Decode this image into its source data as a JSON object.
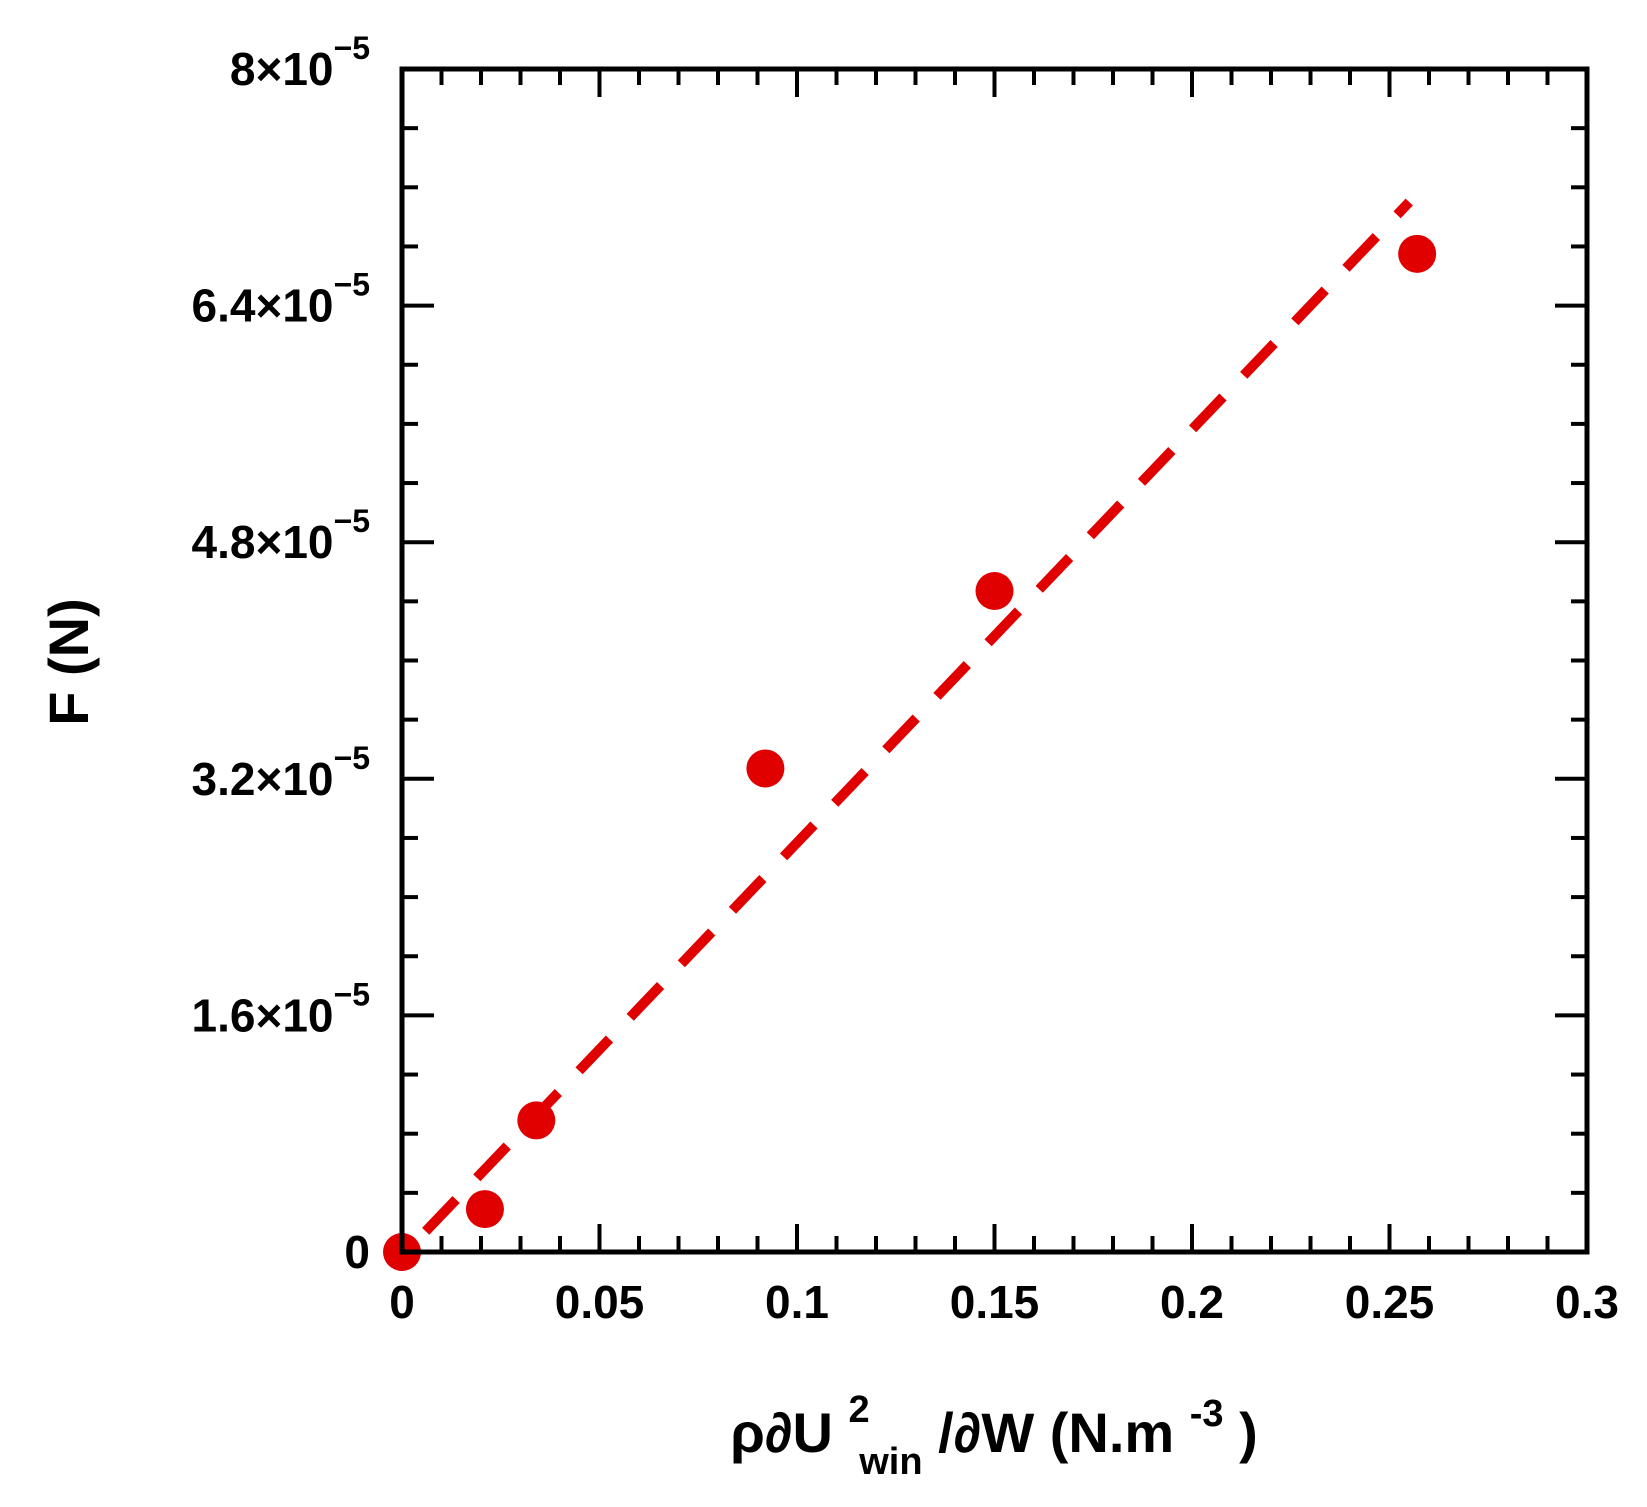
{
  "chart_data": {
    "type": "scatter",
    "title": "",
    "xlabel": {
      "prefix": "ρ∂U",
      "sup": "2",
      "sub": "win",
      "mid": " /∂W (N.m",
      "unit_sup": "-3",
      "suffix": ")"
    },
    "ylabel": "F (N)",
    "xlim": [
      0,
      0.3
    ],
    "ylim": [
      0,
      8e-05
    ],
    "x_ticks": [
      {
        "value": 0,
        "label": "0"
      },
      {
        "value": 0.05,
        "label": "0.05"
      },
      {
        "value": 0.1,
        "label": "0.1"
      },
      {
        "value": 0.15,
        "label": "0.15"
      },
      {
        "value": 0.2,
        "label": "0.2"
      },
      {
        "value": 0.25,
        "label": "0.25"
      },
      {
        "value": 0.3,
        "label": "0.3"
      }
    ],
    "y_ticks": [
      {
        "value": 0,
        "mantissa": "0",
        "exp": ""
      },
      {
        "value": 1.6e-05,
        "mantissa": "1.6×10",
        "exp": "−5"
      },
      {
        "value": 3.2e-05,
        "mantissa": "3.2×10",
        "exp": "−5"
      },
      {
        "value": 4.8e-05,
        "mantissa": "4.8×10",
        "exp": "−5"
      },
      {
        "value": 6.4e-05,
        "mantissa": "6.4×10",
        "exp": "−5"
      },
      {
        "value": 8e-05,
        "mantissa": "8×10",
        "exp": "−5"
      }
    ],
    "series": [
      {
        "color": "#e00000",
        "marker": "circle",
        "x": [
          0,
          0.021,
          0.034,
          0.092,
          0.15,
          0.257
        ],
        "y": [
          0,
          2.9e-06,
          8.9e-06,
          3.27e-05,
          4.47e-05,
          6.75e-05
        ]
      }
    ],
    "fit_line": {
      "color": "#e00000",
      "style": "dashed",
      "x": [
        0.006,
        0.255
      ],
      "y": [
        1.4e-06,
        7.1e-05
      ]
    },
    "grid": false,
    "legend": "none"
  }
}
